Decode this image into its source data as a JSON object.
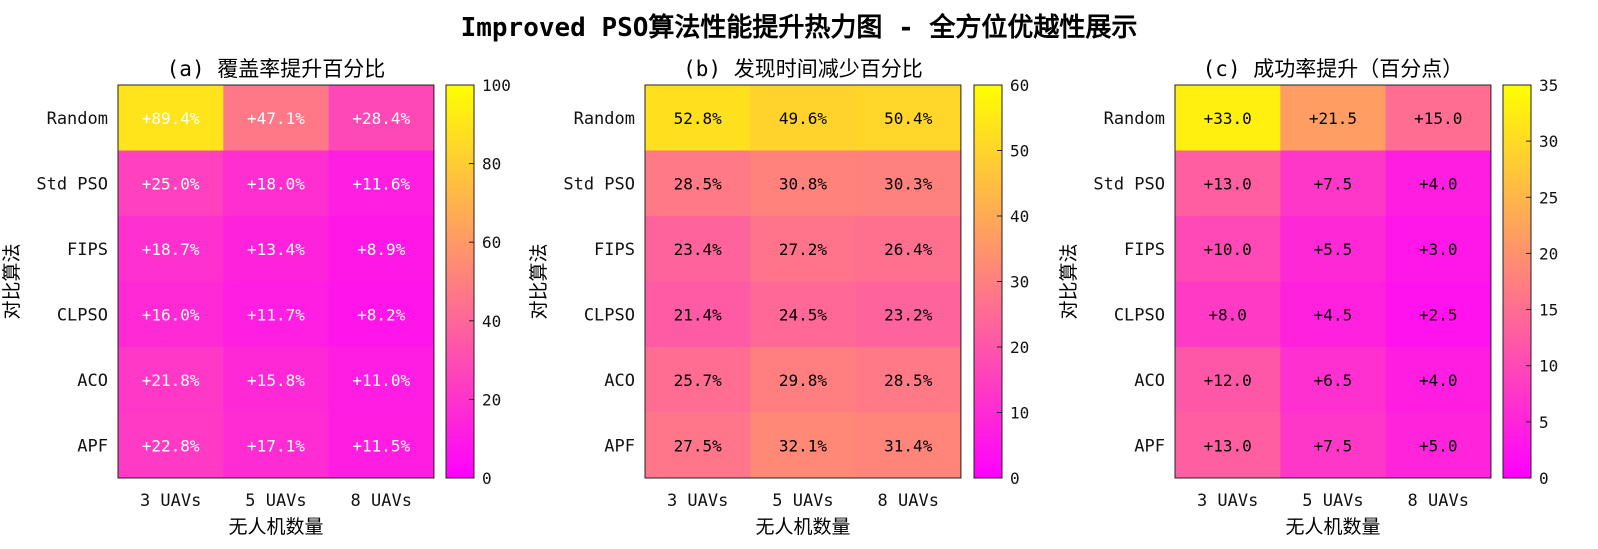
{
  "figure": {
    "title": "Improved PSO算法性能提升热力图 - 全方位优越性展示"
  },
  "chart_data": [
    {
      "type": "heatmap",
      "title": "(a) 覆盖率提升百分比",
      "xlabel": "无人机数量",
      "ylabel": "对比算法",
      "x": [
        "3 UAVs",
        "5 UAVs",
        "8 UAVs"
      ],
      "y": [
        "Random",
        "Std PSO",
        "FIPS",
        "CLPSO",
        "ACO",
        "APF"
      ],
      "values": [
        [
          89.4,
          47.1,
          28.4
        ],
        [
          25.0,
          18.0,
          11.6
        ],
        [
          18.7,
          13.4,
          8.9
        ],
        [
          16.0,
          11.7,
          8.2
        ],
        [
          21.8,
          15.8,
          11.0
        ],
        [
          22.8,
          17.1,
          11.5
        ]
      ],
      "labels": [
        [
          "+89.4%",
          "+47.1%",
          "+28.4%"
        ],
        [
          "+25.0%",
          "+18.0%",
          "+11.6%"
        ],
        [
          "+18.7%",
          "+13.4%",
          "+8.9%"
        ],
        [
          "+16.0%",
          "+11.7%",
          "+8.2%"
        ],
        [
          "+21.8%",
          "+15.8%",
          "+11.0%"
        ],
        [
          "+22.8%",
          "+17.1%",
          "+11.5%"
        ]
      ],
      "label_color": "#ffffff",
      "colorbar": {
        "range": [
          0,
          100
        ],
        "ticks": [
          "0",
          "20",
          "40",
          "60",
          "80",
          "100"
        ]
      },
      "colormap": [
        "#ff00ff",
        "#ffff00"
      ]
    },
    {
      "type": "heatmap",
      "title": "(b) 发现时间减少百分比",
      "xlabel": "无人机数量",
      "ylabel": "对比算法",
      "x": [
        "3 UAVs",
        "5 UAVs",
        "8 UAVs"
      ],
      "y": [
        "Random",
        "Std PSO",
        "FIPS",
        "CLPSO",
        "ACO",
        "APF"
      ],
      "values": [
        [
          52.8,
          49.6,
          50.4
        ],
        [
          28.5,
          30.8,
          30.3
        ],
        [
          23.4,
          27.2,
          26.4
        ],
        [
          21.4,
          24.5,
          23.2
        ],
        [
          25.7,
          29.8,
          28.5
        ],
        [
          27.5,
          32.1,
          31.4
        ]
      ],
      "labels": [
        [
          "52.8%",
          "49.6%",
          "50.4%"
        ],
        [
          "28.5%",
          "30.8%",
          "30.3%"
        ],
        [
          "23.4%",
          "27.2%",
          "26.4%"
        ],
        [
          "21.4%",
          "24.5%",
          "23.2%"
        ],
        [
          "25.7%",
          "29.8%",
          "28.5%"
        ],
        [
          "27.5%",
          "32.1%",
          "31.4%"
        ]
      ],
      "label_color": "#000000",
      "colorbar": {
        "range": [
          0,
          60
        ],
        "ticks": [
          "0",
          "10",
          "20",
          "30",
          "40",
          "50",
          "60"
        ]
      },
      "colormap": [
        "#ff00ff",
        "#ffff00"
      ]
    },
    {
      "type": "heatmap",
      "title": "(c) 成功率提升（百分点）",
      "xlabel": "无人机数量",
      "ylabel": "对比算法",
      "x": [
        "3 UAVs",
        "5 UAVs",
        "8 UAVs"
      ],
      "y": [
        "Random",
        "Std PSO",
        "FIPS",
        "CLPSO",
        "ACO",
        "APF"
      ],
      "values": [
        [
          33.0,
          21.5,
          15.0
        ],
        [
          13.0,
          7.5,
          4.0
        ],
        [
          10.0,
          5.5,
          3.0
        ],
        [
          8.0,
          4.5,
          2.5
        ],
        [
          12.0,
          6.5,
          4.0
        ],
        [
          13.0,
          7.5,
          5.0
        ]
      ],
      "labels": [
        [
          "+33.0",
          "+21.5",
          "+15.0"
        ],
        [
          "+13.0",
          "+7.5",
          "+4.0"
        ],
        [
          "+10.0",
          "+5.5",
          "+3.0"
        ],
        [
          "+8.0",
          "+4.5",
          "+2.5"
        ],
        [
          "+12.0",
          "+6.5",
          "+4.0"
        ],
        [
          "+13.0",
          "+7.5",
          "+5.0"
        ]
      ],
      "label_color": "#000000",
      "colorbar": {
        "range": [
          0,
          35
        ],
        "ticks": [
          "0",
          "5",
          "10",
          "15",
          "20",
          "25",
          "30",
          "35"
        ]
      },
      "colormap": [
        "#ff00ff",
        "#ffff00"
      ]
    }
  ]
}
